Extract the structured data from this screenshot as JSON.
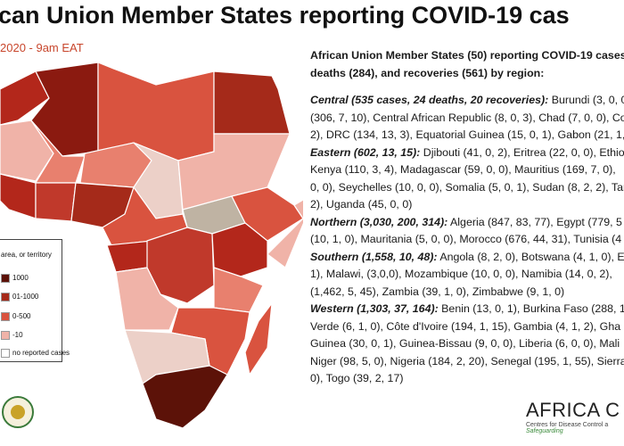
{
  "header": {
    "title": "can Union Member States reporting COVID-19 cas",
    "subtitle": "2020 - 9am EAT"
  },
  "summary": [
    "African Union Member States (50) reporting COVID-19 cases (",
    "deaths (284), and recoveries (561) by region:"
  ],
  "regions": [
    {
      "name": "Central (535 cases, 24 deaths, 20 recoveries):",
      "lines": [
        "Burundi (3, 0, 0",
        "(306, 7, 10), Central African Republic (8, 0, 3), Chad (7, 0, 0), Co",
        "2), DRC (134, 13, 3), Equatorial Guinea (15, 0, 1), Gabon (21, 1,"
      ]
    },
    {
      "name": "Eastern (602, 13, 15):",
      "lines": [
        "Djibouti (41, 0, 2), Eritrea (22, 0, 0), Ethio",
        "Kenya (110, 3, 4), Madagascar (59, 0, 0), Mauritius (169, 7, 0),",
        "0, 0), Seychelles (10, 0, 0), Somalia (5, 0, 1), Sudan (8, 2, 2), Tar",
        "2), Uganda (45, 0, 0)"
      ]
    },
    {
      "name": "Northern (3,030, 200, 314):",
      "lines": [
        "Algeria (847, 83, 77), Egypt (779, 5",
        "(10, 1, 0), Mauritania (5, 0, 0), Morocco (676, 44, 31), Tunisia (4"
      ]
    },
    {
      "name": "Southern (1,558, 10, 48):",
      "lines": [
        "Angola (8, 2, 0), Botswana (4, 1, 0), E",
        "1), Malawi, (3,0,0), Mozambique (10, 0, 0), Namibia (14, 0, 2),",
        "(1,462, 5, 45), Zambia (39, 1, 0), Zimbabwe (9, 1, 0)"
      ]
    },
    {
      "name": "Western (1,303, 37, 164):",
      "lines": [
        "Benin (13, 0, 1), Burkina Faso (288, 1",
        "Verde (6, 1, 0), Côte d'Ivoire (194, 1, 15), Gambia (4, 1, 2), Gha",
        "Guinea (30, 0, 1), Guinea-Bissau (9, 0, 0), Liberia (6, 0, 0), Mali",
        "Niger (98, 5, 0), Nigeria (184, 2, 20), Senegal (195, 1, 55), Sierra",
        "0), Togo (39, 2, 17)"
      ]
    }
  ],
  "legend": {
    "heading": "area, or territory",
    "items": [
      "1000",
      "01-1000",
      "0-500",
      "-10",
      "no reported cases"
    ]
  },
  "logo": {
    "name": "AFRICA C",
    "subtitle": "Centres for Disease Control a",
    "tagline": "Safeguarding"
  }
}
